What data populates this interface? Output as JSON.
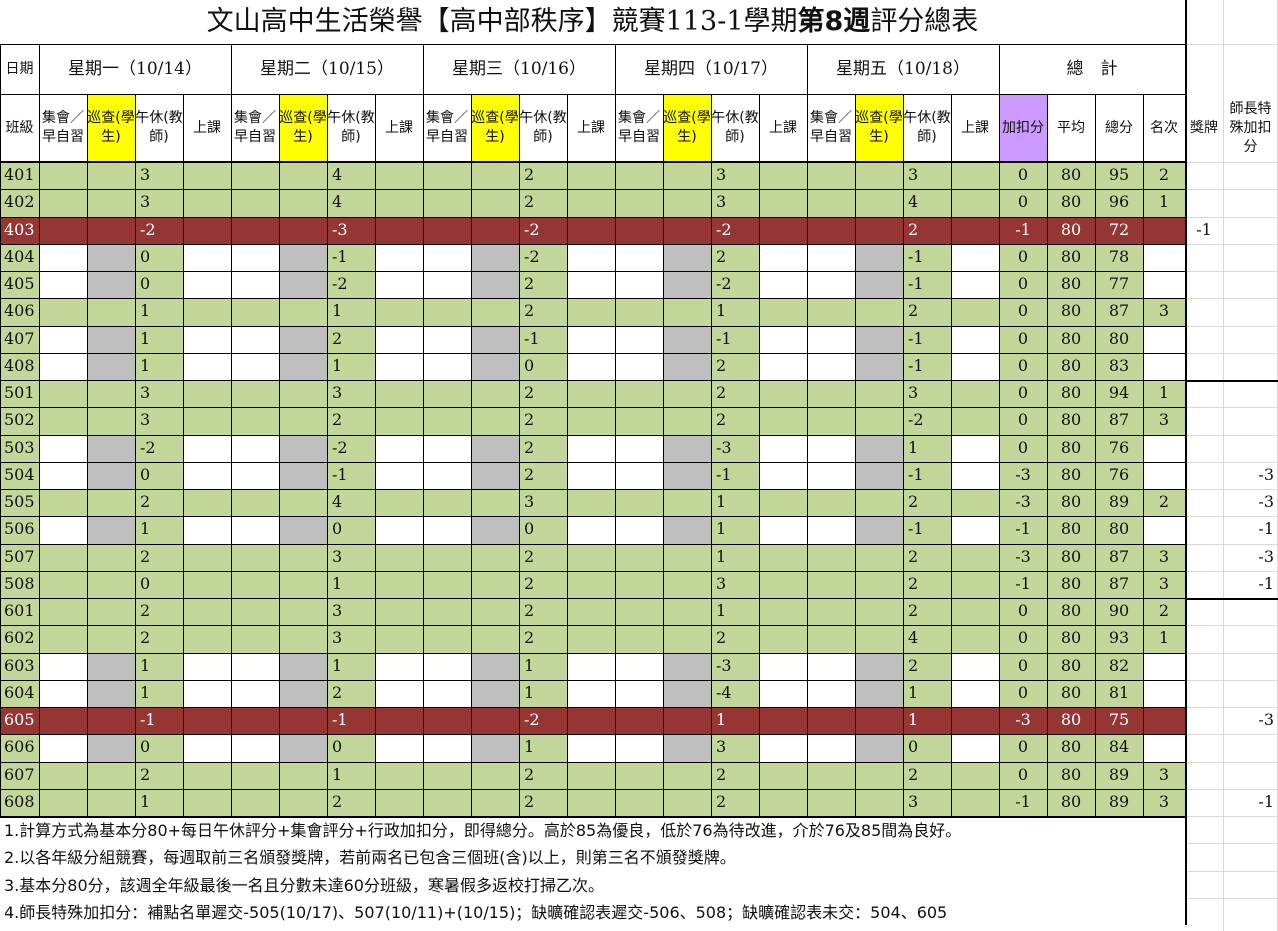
{
  "title": {
    "prefix": "文山高中生活榮譽【高中部秩序】競賽113-1學期",
    "bold": "第8週",
    "suffix": "評分總表"
  },
  "header": {
    "date_label": "日期",
    "class_label": "班級",
    "days": [
      "星期一（10/14）",
      "星期二（10/15）",
      "星期三（10/16）",
      "星期四（10/17）",
      "星期五（10/18）"
    ],
    "total_label": "總　計",
    "sub_assembly": "集會／早自習",
    "sub_patrol": "巡查(學生)",
    "sub_nap": "午休(教師)",
    "sub_class": "上課",
    "bonus": "加扣分",
    "average": "平均",
    "total": "總分",
    "rank": "名次",
    "award": "獎牌",
    "special": "師長特殊加扣分"
  },
  "colors": {
    "green": "#c4d79b",
    "white": "#ffffff",
    "gray": "#bfbfbf",
    "maroon": "#963634",
    "yellow": "#ffff00",
    "purple": "#cc99ff"
  },
  "rows": [
    {
      "cls": "401",
      "theme": "green",
      "nap": [
        "3",
        "4",
        "2",
        "3",
        "3"
      ],
      "bonus": "0",
      "avg": "80",
      "total": "95",
      "rank": "2",
      "award": "",
      "special": ""
    },
    {
      "cls": "402",
      "theme": "green",
      "nap": [
        "3",
        "4",
        "2",
        "3",
        "4"
      ],
      "bonus": "0",
      "avg": "80",
      "total": "96",
      "rank": "1",
      "award": "",
      "special": ""
    },
    {
      "cls": "403",
      "theme": "maroon",
      "nap": [
        "-2",
        "-3",
        "-2",
        "-2",
        "2"
      ],
      "bonus": "-1",
      "avg": "80",
      "total": "72",
      "rank": "",
      "award": "-1",
      "special": ""
    },
    {
      "cls": "404",
      "theme": "gray",
      "nap": [
        "0",
        "-1",
        "-2",
        "2",
        "-1"
      ],
      "bonus": "0",
      "avg": "80",
      "total": "78",
      "rank": "",
      "award": "",
      "special": ""
    },
    {
      "cls": "405",
      "theme": "gray",
      "nap": [
        "0",
        "-2",
        "2",
        "-2",
        "-1"
      ],
      "bonus": "0",
      "avg": "80",
      "total": "77",
      "rank": "",
      "award": "",
      "special": ""
    },
    {
      "cls": "406",
      "theme": "green",
      "nap": [
        "1",
        "1",
        "2",
        "1",
        "2"
      ],
      "bonus": "0",
      "avg": "80",
      "total": "87",
      "rank": "3",
      "award": "",
      "special": ""
    },
    {
      "cls": "407",
      "theme": "gray",
      "nap": [
        "1",
        "2",
        "-1",
        "-1",
        "-1"
      ],
      "bonus": "0",
      "avg": "80",
      "total": "80",
      "rank": "",
      "award": "",
      "special": ""
    },
    {
      "cls": "408",
      "theme": "gray",
      "nap": [
        "1",
        "1",
        "0",
        "2",
        "-1"
      ],
      "bonus": "0",
      "avg": "80",
      "total": "83",
      "rank": "",
      "award": "",
      "special": ""
    },
    {
      "cls": "501",
      "theme": "green",
      "nap": [
        "3",
        "3",
        "2",
        "2",
        "3"
      ],
      "bonus": "0",
      "avg": "80",
      "total": "94",
      "rank": "1",
      "award": "",
      "special": ""
    },
    {
      "cls": "502",
      "theme": "green",
      "nap": [
        "3",
        "2",
        "2",
        "2",
        "-2"
      ],
      "bonus": "0",
      "avg": "80",
      "total": "87",
      "rank": "3",
      "award": "",
      "special": ""
    },
    {
      "cls": "503",
      "theme": "gray",
      "nap": [
        "-2",
        "-2",
        "2",
        "-3",
        "1"
      ],
      "bonus": "0",
      "avg": "80",
      "total": "76",
      "rank": "",
      "award": "",
      "special": ""
    },
    {
      "cls": "504",
      "theme": "gray",
      "nap": [
        "0",
        "-1",
        "2",
        "-1",
        "-1"
      ],
      "bonus": "-3",
      "avg": "80",
      "total": "76",
      "rank": "",
      "award": "",
      "special": "-3"
    },
    {
      "cls": "505",
      "theme": "green",
      "nap": [
        "2",
        "4",
        "3",
        "1",
        "2"
      ],
      "bonus": "-3",
      "avg": "80",
      "total": "89",
      "rank": "2",
      "award": "",
      "special": "-3"
    },
    {
      "cls": "506",
      "theme": "gray",
      "nap": [
        "1",
        "0",
        "0",
        "1",
        "-1"
      ],
      "bonus": "-1",
      "avg": "80",
      "total": "80",
      "rank": "",
      "award": "",
      "special": "-1"
    },
    {
      "cls": "507",
      "theme": "green",
      "nap": [
        "2",
        "3",
        "2",
        "1",
        "2"
      ],
      "bonus": "-3",
      "avg": "80",
      "total": "87",
      "rank": "3",
      "award": "",
      "special": "-3"
    },
    {
      "cls": "508",
      "theme": "green",
      "nap": [
        "0",
        "1",
        "2",
        "3",
        "2"
      ],
      "bonus": "-1",
      "avg": "80",
      "total": "87",
      "rank": "3",
      "award": "",
      "special": "-1"
    },
    {
      "cls": "601",
      "theme": "green",
      "nap": [
        "2",
        "3",
        "2",
        "1",
        "2"
      ],
      "bonus": "0",
      "avg": "80",
      "total": "90",
      "rank": "2",
      "award": "",
      "special": ""
    },
    {
      "cls": "602",
      "theme": "green",
      "nap": [
        "2",
        "3",
        "2",
        "2",
        "4"
      ],
      "bonus": "0",
      "avg": "80",
      "total": "93",
      "rank": "1",
      "award": "",
      "special": ""
    },
    {
      "cls": "603",
      "theme": "gray",
      "nap": [
        "1",
        "1",
        "1",
        "-3",
        "2"
      ],
      "bonus": "0",
      "avg": "80",
      "total": "82",
      "rank": "",
      "award": "",
      "special": ""
    },
    {
      "cls": "604",
      "theme": "gray",
      "nap": [
        "1",
        "2",
        "1",
        "-4",
        "1"
      ],
      "bonus": "0",
      "avg": "80",
      "total": "81",
      "rank": "",
      "award": "",
      "special": ""
    },
    {
      "cls": "605",
      "theme": "maroon",
      "nap": [
        "-1",
        "-1",
        "-2",
        "1",
        "1"
      ],
      "bonus": "-3",
      "avg": "80",
      "total": "75",
      "rank": "",
      "award": "",
      "special": "-3"
    },
    {
      "cls": "606",
      "theme": "gray",
      "nap": [
        "0",
        "0",
        "1",
        "3",
        "0"
      ],
      "bonus": "0",
      "avg": "80",
      "total": "84",
      "rank": "",
      "award": "",
      "special": ""
    },
    {
      "cls": "607",
      "theme": "green",
      "nap": [
        "2",
        "1",
        "2",
        "2",
        "2"
      ],
      "bonus": "0",
      "avg": "80",
      "total": "89",
      "rank": "3",
      "award": "",
      "special": ""
    },
    {
      "cls": "608",
      "theme": "green",
      "nap": [
        "1",
        "2",
        "2",
        "2",
        "3"
      ],
      "bonus": "-1",
      "avg": "80",
      "total": "89",
      "rank": "3",
      "award": "",
      "special": "-1"
    }
  ],
  "notes": [
    "1.計算方式為基本分80+每日午休評分+集會評分+行政加扣分，即得總分。高於85為優良，低於76為待改進，介於76及85間為良好。",
    "2.以各年級分組競賽，每週取前三名頒發獎牌，若前兩名已包含三個班(含)以上，則第三名不頒發獎牌。",
    "3.基本分80分，該週全年級最後一名且分數未達60分班級，寒暑假多返校打掃乙次。",
    "4.師長特殊加扣分：補點名單遲交-505(10/17)、507(10/11)+(10/15)；缺曠確認表遲交-506、508；缺曠確認表未交：504、605"
  ]
}
